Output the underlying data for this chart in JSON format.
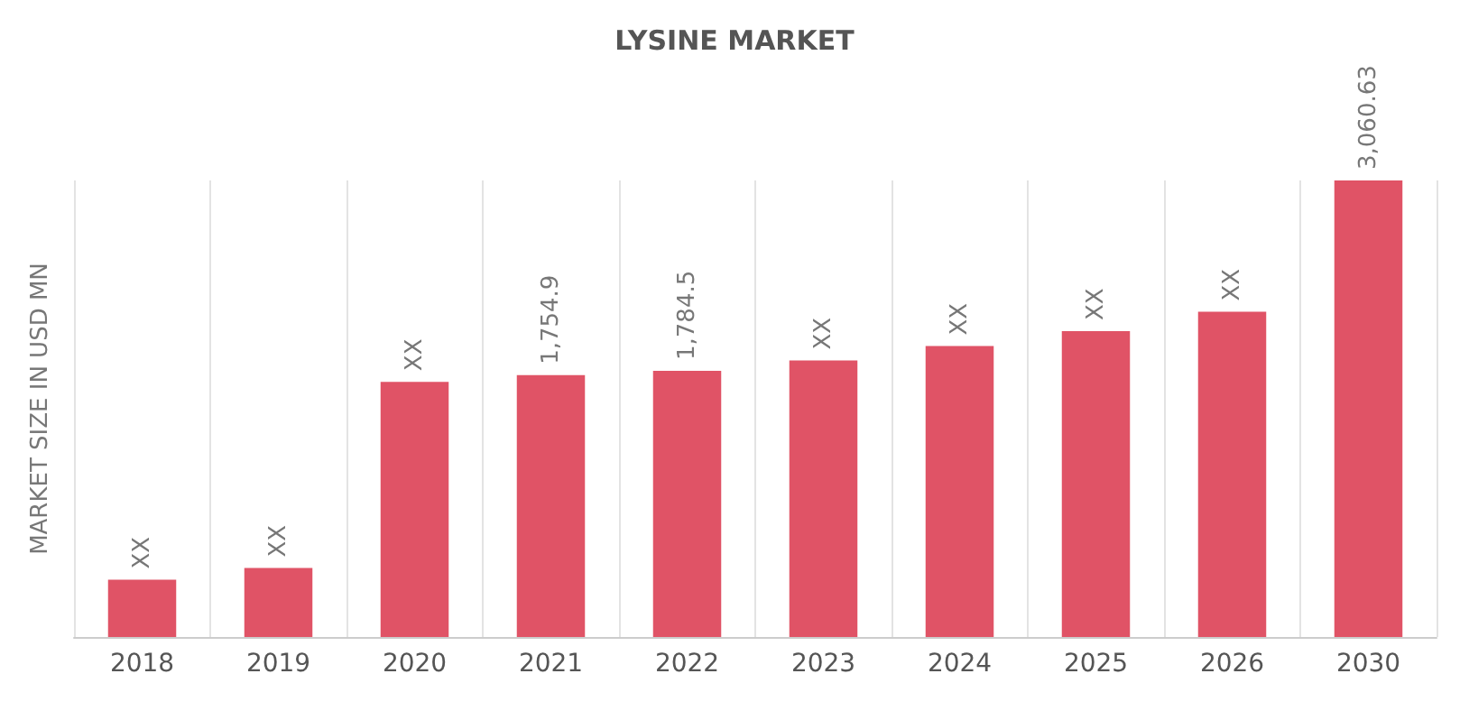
{
  "chart_data": {
    "type": "bar",
    "title": "LYSINE MARKET",
    "ylabel": "MARKET SIZE IN USD MN",
    "grid": "x",
    "categories": [
      "2018",
      "2019",
      "2020",
      "2021",
      "2022",
      "2023",
      "2024",
      "2025",
      "2026",
      "2030"
    ],
    "values": [
      384,
      463,
      1711,
      1754.9,
      1784.5,
      1854,
      1950,
      2050,
      2180,
      3060.63
    ],
    "value_labels": [
      "XX",
      "XX",
      "XX",
      "1,754.9",
      "1,784.5",
      "XX",
      "XX",
      "XX",
      "XX",
      "3,060.63"
    ],
    "color": "#e05366"
  }
}
